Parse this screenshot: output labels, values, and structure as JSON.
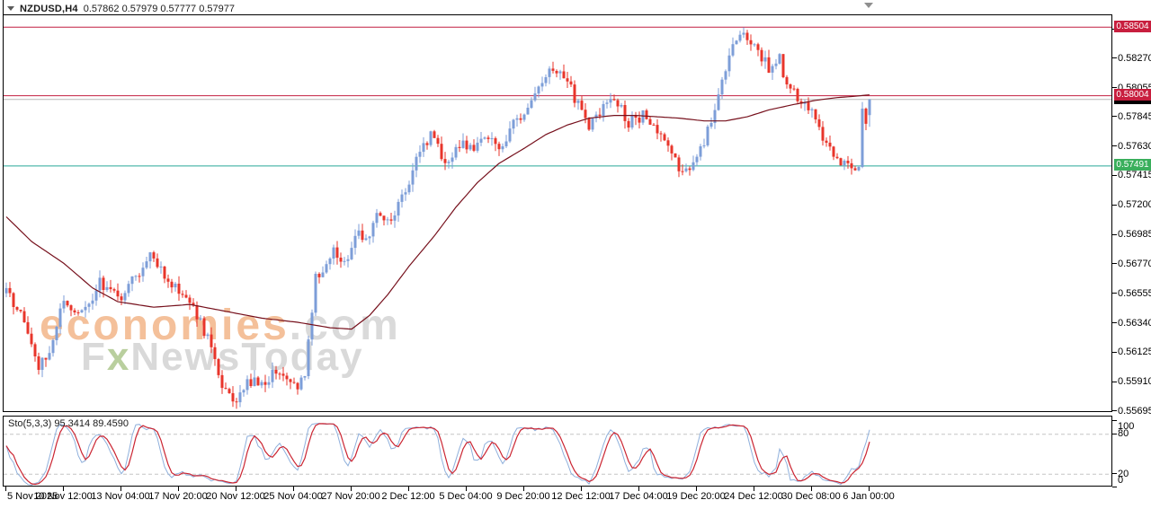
{
  "header": {
    "symbol": "NZDUSD,H4",
    "ohlc": "0.57862 0.57979 0.57777 0.57977"
  },
  "watermark": {
    "line1_main": "economies",
    "line1_suffix": ".com",
    "line2_f": "F",
    "line2_x": "x",
    "line2_rest": "NewsToday"
  },
  "indicator": {
    "label": "Sto(5,3,3) 95.3414 89.4590",
    "name": "Stochastic Oscillator",
    "scale": [
      100,
      80,
      20,
      0
    ],
    "dashed_levels": [
      80,
      20
    ],
    "last_k": 95.3414,
    "last_d": 89.459,
    "k_color": "#8fb0dc",
    "d_color": "#cb2532",
    "level_line_color": "#c6c6c6"
  },
  "price_axis": {
    "labels": [
      "0.58485",
      "0.58270",
      "0.58055",
      "0.57845",
      "0.57630",
      "0.57415",
      "0.57200",
      "0.56985",
      "0.56770",
      "0.56555",
      "0.56340",
      "0.56125",
      "0.55910",
      "0.55695"
    ]
  },
  "time_axis": {
    "labels": [
      "5 Nov 2025",
      "10 Nov 12:00",
      "13 Nov 04:00",
      "17 Nov 20:00",
      "20 Nov 12:00",
      "25 Nov 04:00",
      "27 Nov 20:00",
      "2 Dec 12:00",
      "5 Dec 04:00",
      "9 Dec 20:00",
      "12 Dec 12:00",
      "17 Dec 04:00",
      "19 Dec 20:00",
      "24 Dec 12:00",
      "30 Dec 08:00",
      "6 Jan 00:00"
    ]
  },
  "levels": {
    "r1": {
      "text": "0.58504",
      "price": 0.58504,
      "bg": "#c81e3e"
    },
    "r2": {
      "text": "0.58004",
      "price": 0.58004,
      "bg": "#c81e3e"
    },
    "support": {
      "text": "0.57491",
      "price": 0.57491,
      "bg": "#3aaf5c"
    },
    "current": {
      "text": "0.57977",
      "price": 0.57977,
      "bg": "#000000",
      "line_color": "#b8b8b8"
    }
  },
  "chart_data": {
    "type": "candlestick",
    "symbol": "NZDUSD",
    "timeframe": "H4",
    "bars": 241,
    "y_range": [
      0.55688,
      0.58591
    ],
    "price_gridlines": [
      0.58485,
      0.5827,
      0.58055,
      0.57845,
      0.5763,
      0.57415,
      0.572,
      0.56985,
      0.5677,
      0.56555,
      0.5634,
      0.56125,
      0.5591,
      0.55695
    ],
    "current_bar": {
      "open": 0.57862,
      "high": 0.57979,
      "low": 0.57777,
      "close": 0.57977
    },
    "horizontal_lines": [
      {
        "price": 0.58504,
        "color": "#c21f40",
        "role": "resistance"
      },
      {
        "price": 0.58004,
        "color": "#c21f40",
        "role": "resistance"
      },
      {
        "price": 0.57491,
        "color": "#27a699",
        "role": "support"
      }
    ],
    "price_path": [
      [
        0,
        0.566
      ],
      [
        6,
        0.5628
      ],
      [
        9,
        0.56
      ],
      [
        12,
        0.5615
      ],
      [
        16,
        0.5652
      ],
      [
        21,
        0.564
      ],
      [
        26,
        0.5663
      ],
      [
        31,
        0.5652
      ],
      [
        36,
        0.5668
      ],
      [
        40,
        0.5684
      ],
      [
        45,
        0.5663
      ],
      [
        48,
        0.566
      ],
      [
        52,
        0.5646
      ],
      [
        56,
        0.5622
      ],
      [
        60,
        0.5588
      ],
      [
        63,
        0.5576
      ],
      [
        67,
        0.5594
      ],
      [
        71,
        0.5587
      ],
      [
        75,
        0.56
      ],
      [
        78,
        0.5592
      ],
      [
        81,
        0.5588
      ],
      [
        83,
        0.5596
      ],
      [
        85,
        0.564
      ],
      [
        86,
        0.5668
      ],
      [
        88,
        0.567
      ],
      [
        91,
        0.569
      ],
      [
        94,
        0.5678
      ],
      [
        97,
        0.57
      ],
      [
        100,
        0.5693
      ],
      [
        103,
        0.5714
      ],
      [
        107,
        0.571
      ],
      [
        111,
        0.5731
      ],
      [
        115,
        0.5762
      ],
      [
        118,
        0.5771
      ],
      [
        122,
        0.5753
      ],
      [
        126,
        0.5766
      ],
      [
        130,
        0.5759
      ],
      [
        133,
        0.5771
      ],
      [
        137,
        0.5763
      ],
      [
        141,
        0.5779
      ],
      [
        145,
        0.5791
      ],
      [
        148,
        0.5808
      ],
      [
        152,
        0.582
      ],
      [
        156,
        0.5813
      ],
      [
        160,
        0.5786
      ],
      [
        162,
        0.5776
      ],
      [
        166,
        0.5791
      ],
      [
        170,
        0.5796
      ],
      [
        173,
        0.5781
      ],
      [
        177,
        0.5786
      ],
      [
        181,
        0.5771
      ],
      [
        185,
        0.5761
      ],
      [
        188,
        0.5743
      ],
      [
        192,
        0.5756
      ],
      [
        196,
        0.5781
      ],
      [
        198,
        0.5801
      ],
      [
        201,
        0.5831
      ],
      [
        203,
        0.5843
      ],
      [
        205,
        0.5847
      ],
      [
        207,
        0.5838
      ],
      [
        210,
        0.5829
      ],
      [
        212,
        0.582
      ],
      [
        215,
        0.5827
      ],
      [
        217,
        0.5809
      ],
      [
        220,
        0.5799
      ],
      [
        222,
        0.5794
      ],
      [
        225,
        0.5784
      ],
      [
        227,
        0.5769
      ],
      [
        230,
        0.5756
      ],
      [
        232,
        0.5752
      ],
      [
        235,
        0.5744
      ],
      [
        237,
        0.5747
      ],
      [
        238,
        0.5789
      ],
      [
        239,
        0.5783
      ],
      [
        240,
        0.57977
      ]
    ],
    "ma_path": [
      [
        0,
        0.5712
      ],
      [
        7,
        0.5694
      ],
      [
        16,
        0.5678
      ],
      [
        24,
        0.566
      ],
      [
        31,
        0.565
      ],
      [
        41,
        0.5646
      ],
      [
        51,
        0.5648
      ],
      [
        61,
        0.5643
      ],
      [
        71,
        0.5638
      ],
      [
        81,
        0.5635
      ],
      [
        90,
        0.5631
      ],
      [
        96,
        0.563
      ],
      [
        101,
        0.564
      ],
      [
        106,
        0.5655
      ],
      [
        112,
        0.5676
      ],
      [
        119,
        0.5698
      ],
      [
        125,
        0.5719
      ],
      [
        131,
        0.5737
      ],
      [
        137,
        0.5751
      ],
      [
        144,
        0.5762
      ],
      [
        150,
        0.5772
      ],
      [
        156,
        0.5779
      ],
      [
        162,
        0.5784
      ],
      [
        169,
        0.5786
      ],
      [
        175,
        0.5786
      ],
      [
        181,
        0.5785
      ],
      [
        187,
        0.5784
      ],
      [
        194,
        0.5782
      ],
      [
        200,
        0.5782
      ],
      [
        206,
        0.5785
      ],
      [
        212,
        0.579
      ],
      [
        219,
        0.5794
      ],
      [
        225,
        0.5797
      ],
      [
        231,
        0.5799
      ],
      [
        236,
        0.58
      ],
      [
        240,
        0.5801
      ]
    ],
    "colors": {
      "bull": "#7d9ed8",
      "bear": "#e8352b",
      "ma": "#76101c",
      "background": "#ffffff",
      "border": "#000000"
    }
  }
}
